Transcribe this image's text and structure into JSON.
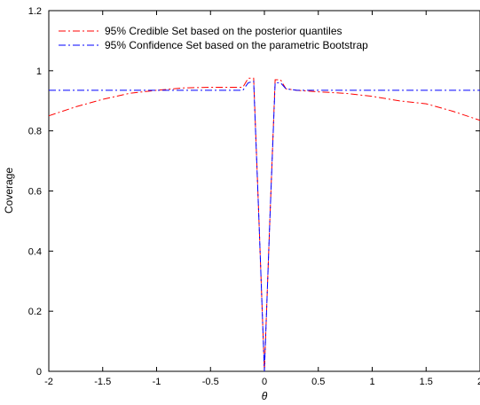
{
  "chart_data": {
    "type": "line",
    "title": "",
    "xlabel": "θ",
    "ylabel": "Coverage",
    "xlim": [
      -2,
      2
    ],
    "ylim": [
      0,
      1.2
    ],
    "xticks": [
      -2,
      -1.5,
      -1,
      -0.5,
      0,
      0.5,
      1,
      1.5,
      2
    ],
    "xtick_labels": [
      "-2",
      "-1.5",
      "-1",
      "-0.5",
      "0",
      "0.5",
      "1",
      "1.5",
      "2"
    ],
    "yticks": [
      0,
      0.2,
      0.4,
      0.6,
      0.8,
      1,
      1.2
    ],
    "ytick_labels": [
      "0",
      "0.2",
      "0.4",
      "0.6",
      "0.8",
      "1",
      "1.2"
    ],
    "grid": false,
    "legend_position": "top-left",
    "series": [
      {
        "name": "95% Credible Set based on the posterior quantiles",
        "color": "#ff0000",
        "line_style": "dash-dot",
        "x": [
          -2,
          -1.75,
          -1.5,
          -1.25,
          -1,
          -0.75,
          -0.5,
          -0.3,
          -0.2,
          -0.15,
          -0.1,
          -0.05,
          0,
          0.05,
          0.1,
          0.15,
          0.2,
          0.3,
          0.5,
          0.75,
          1,
          1.25,
          1.5,
          1.75,
          2
        ],
        "y": [
          0.85,
          0.88,
          0.905,
          0.925,
          0.935,
          0.943,
          0.945,
          0.945,
          0.945,
          0.975,
          0.975,
          0.5,
          0.0,
          0.5,
          0.97,
          0.97,
          0.94,
          0.935,
          0.93,
          0.925,
          0.915,
          0.9,
          0.89,
          0.865,
          0.835
        ]
      },
      {
        "name": "95% Confidence Set based on the parametric Bootstrap",
        "color": "#0000ff",
        "line_style": "dash-dot",
        "x": [
          -2,
          -1.5,
          -1,
          -0.5,
          -0.3,
          -0.2,
          -0.15,
          -0.1,
          -0.05,
          0,
          0.05,
          0.1,
          0.15,
          0.2,
          0.3,
          0.5,
          1,
          1.5,
          2
        ],
        "y": [
          0.935,
          0.935,
          0.935,
          0.935,
          0.935,
          0.935,
          0.96,
          0.965,
          0.5,
          0.0,
          0.5,
          0.96,
          0.96,
          0.94,
          0.935,
          0.935,
          0.935,
          0.935,
          0.935
        ]
      }
    ]
  }
}
